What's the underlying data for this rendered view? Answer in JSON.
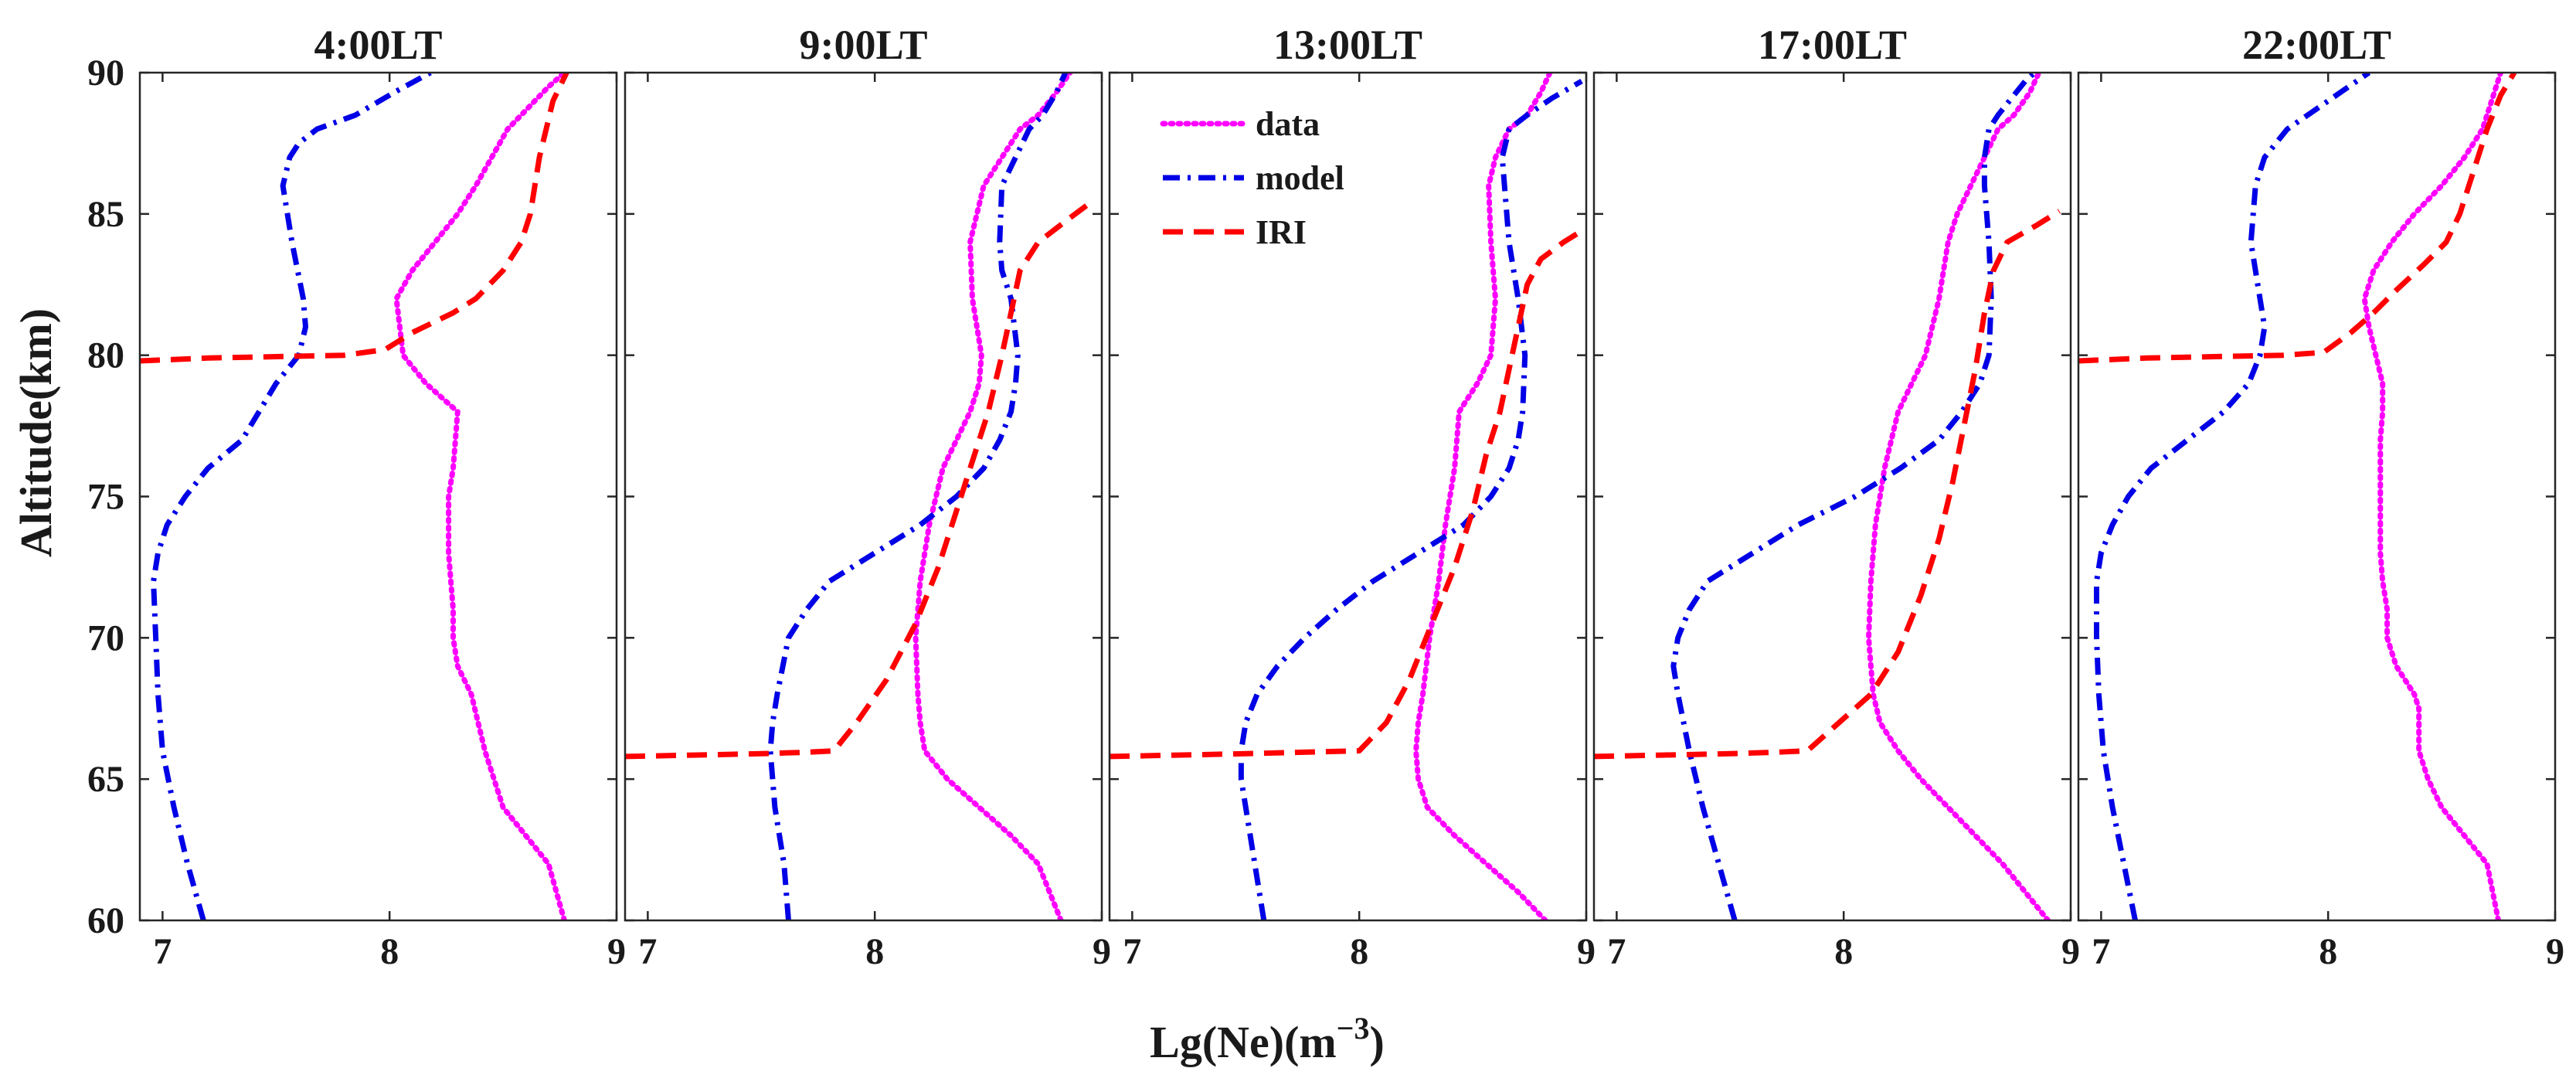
{
  "figure": {
    "xlabel_main": "Lg(Ne)(m",
    "xlabel_sup": "−3",
    "xlabel_close": ")",
    "ylabel": "Altitude(km)"
  },
  "legend": [
    {
      "key": "data",
      "label": "data"
    },
    {
      "key": "model",
      "label": "model"
    },
    {
      "key": "iri",
      "label": "IRI"
    }
  ],
  "colors": {
    "data": "#ff00ff",
    "model": "#0000e6",
    "iri": "#ff0000"
  },
  "chart_data": [
    {
      "type": "line",
      "title": "4:00LT",
      "xlabel": "Lg(Ne)(m^-3)",
      "ylabel": "Altitude(km)",
      "xlim": [
        6.9,
        9
      ],
      "ylim": [
        60,
        90
      ],
      "xticks": [
        7,
        8,
        9
      ],
      "yticks": [
        60,
        65,
        70,
        75,
        80,
        85,
        90
      ],
      "series": [
        {
          "name": "data",
          "x": [
            8.77,
            8.7,
            8.6,
            8.5,
            8.42,
            8.36,
            8.3,
            8.28,
            8.28,
            8.27,
            8.26,
            8.26,
            8.28,
            8.3,
            8.16,
            8.06,
            8.03,
            8.1,
            8.2,
            8.3,
            8.38,
            8.45,
            8.52,
            8.58,
            8.64,
            8.7,
            8.77
          ],
          "y": [
            60,
            62,
            63,
            64,
            66,
            68,
            69,
            70,
            71,
            72,
            73,
            75,
            76,
            78,
            79,
            80,
            82,
            83,
            84,
            85,
            86,
            87,
            88,
            88.5,
            89,
            89.5,
            90
          ]
        },
        {
          "name": "model",
          "x": [
            7.18,
            7.11,
            7.05,
            7.0,
            6.98,
            6.97,
            6.96,
            6.98,
            7.02,
            7.1,
            7.2,
            7.35,
            7.5,
            7.6,
            7.63,
            7.62,
            7.57,
            7.53,
            7.56,
            7.6,
            7.68,
            7.85,
            8.02,
            8.18
          ],
          "y": [
            60,
            62,
            64,
            66,
            68,
            70,
            72,
            73,
            74,
            75,
            76,
            77,
            79,
            80,
            81,
            82,
            84,
            86,
            87,
            87.5,
            88,
            88.5,
            89.3,
            90
          ]
        },
        {
          "name": "IRI",
          "x": [
            6.9,
            7.2,
            7.5,
            7.8,
            7.98,
            8.1,
            8.28,
            8.38,
            8.5,
            8.58,
            8.62,
            8.66,
            8.72,
            8.78
          ],
          "y": [
            79.8,
            79.9,
            79.95,
            80.0,
            80.2,
            80.8,
            81.5,
            82,
            83,
            84,
            85,
            87,
            89,
            90
          ]
        }
      ]
    },
    {
      "type": "line",
      "title": "9:00LT",
      "xlabel": "Lg(Ne)(m^-3)",
      "ylabel": "Altitude(km)",
      "xlim": [
        6.9,
        9
      ],
      "ylim": [
        60,
        90
      ],
      "xticks": [
        7,
        8,
        9
      ],
      "yticks": [
        60,
        65,
        70,
        75,
        80,
        85,
        90
      ],
      "series": [
        {
          "name": "data",
          "x": [
            8.82,
            8.72,
            8.6,
            8.46,
            8.32,
            8.22,
            8.2,
            8.19,
            8.18,
            8.2,
            8.24,
            8.3,
            8.36,
            8.42,
            8.46,
            8.47,
            8.43,
            8.42,
            8.48,
            8.56,
            8.64,
            8.72,
            8.8,
            8.86
          ],
          "y": [
            60,
            62,
            63,
            64,
            65,
            66,
            67,
            68,
            70,
            72,
            74,
            76,
            77,
            78,
            79,
            80,
            82,
            84,
            86,
            87,
            88,
            88.5,
            89.3,
            90
          ]
        },
        {
          "name": "model",
          "x": [
            7.62,
            7.6,
            7.56,
            7.54,
            7.55,
            7.57,
            7.62,
            7.7,
            7.8,
            8.0,
            8.2,
            8.36,
            8.48,
            8.55,
            8.6,
            8.62,
            8.63,
            8.6,
            8.56,
            8.55,
            8.56,
            8.62,
            8.68,
            8.74,
            8.8,
            8.84
          ],
          "y": [
            60,
            62,
            64,
            66,
            67,
            68,
            70,
            71,
            72,
            73,
            74,
            75,
            76,
            77,
            78,
            79,
            80,
            82,
            83,
            84,
            86,
            87,
            88,
            88.5,
            89.3,
            90
          ]
        },
        {
          "name": "IRI",
          "x": [
            6.9,
            7.2,
            7.5,
            7.7,
            7.82,
            7.92,
            8.05,
            8.18,
            8.28,
            8.36,
            8.44,
            8.5,
            8.56,
            8.6,
            8.64,
            8.72,
            8.85,
            8.95
          ],
          "y": [
            65.8,
            65.85,
            65.9,
            65.95,
            66,
            67,
            68.5,
            70.5,
            72.5,
            74.5,
            76.5,
            78,
            80,
            81.5,
            83,
            84,
            84.8,
            85.4
          ]
        }
      ]
    },
    {
      "type": "line",
      "title": "13:00LT",
      "xlabel": "Lg(Ne)(m^-3)",
      "ylabel": "Altitude(km)",
      "xlim": [
        6.9,
        9
      ],
      "ylim": [
        60,
        90
      ],
      "xticks": [
        7,
        8,
        9
      ],
      "yticks": [
        60,
        65,
        70,
        75,
        80,
        85,
        90
      ],
      "series": [
        {
          "name": "data",
          "x": [
            8.82,
            8.7,
            8.56,
            8.42,
            8.3,
            8.26,
            8.25,
            8.26,
            8.28,
            8.31,
            8.35,
            8.38,
            8.42,
            8.44,
            8.52,
            8.58,
            8.6,
            8.58,
            8.57,
            8.6,
            8.66,
            8.74,
            8.8,
            8.84
          ],
          "y": [
            60,
            61,
            62,
            63,
            64,
            65,
            66,
            67,
            68,
            70,
            72,
            74,
            76,
            78,
            79,
            80,
            82,
            84,
            86,
            87,
            88,
            88.5,
            89.3,
            90
          ]
        },
        {
          "name": "model",
          "x": [
            7.58,
            7.54,
            7.5,
            7.48,
            7.48,
            7.5,
            7.55,
            7.64,
            7.76,
            7.9,
            8.06,
            8.26,
            8.46,
            8.58,
            8.66,
            8.7,
            8.72,
            8.73,
            8.7,
            8.66,
            8.64,
            8.63,
            8.66,
            8.74,
            8.85,
            8.98
          ],
          "y": [
            60,
            62,
            64,
            65,
            66,
            67,
            68,
            69,
            70,
            71,
            72,
            73,
            74,
            75,
            76,
            77,
            78,
            80,
            82,
            84,
            86,
            87,
            88,
            88.5,
            89.1,
            89.7
          ]
        },
        {
          "name": "IRI",
          "x": [
            6.9,
            7.2,
            7.5,
            7.75,
            8.0,
            8.12,
            8.22,
            8.32,
            8.42,
            8.5,
            8.56,
            8.62,
            8.66,
            8.7,
            8.74,
            8.8,
            8.9,
            8.98
          ],
          "y": [
            65.8,
            65.85,
            65.9,
            65.95,
            66,
            67,
            68.5,
            70.5,
            72.5,
            74.5,
            76.5,
            78,
            79.5,
            81,
            82.5,
            83.4,
            84,
            84.4
          ]
        }
      ]
    },
    {
      "type": "line",
      "title": "17:00LT",
      "xlabel": "Lg(Ne)(m^-3)",
      "ylabel": "Altitude(km)",
      "xlim": [
        6.9,
        9
      ],
      "ylim": [
        60,
        90
      ],
      "xticks": [
        7,
        8,
        9
      ],
      "yticks": [
        60,
        65,
        70,
        75,
        80,
        85,
        90
      ],
      "series": [
        {
          "name": "data",
          "x": [
            8.9,
            8.8,
            8.7,
            8.58,
            8.46,
            8.34,
            8.24,
            8.16,
            8.13,
            8.12,
            8.11,
            8.12,
            8.14,
            8.18,
            8.24,
            8.3,
            8.36,
            8.42,
            8.46,
            8.5,
            8.56,
            8.62,
            8.68,
            8.75,
            8.82,
            8.86
          ],
          "y": [
            60,
            61,
            62,
            63,
            64,
            65,
            66,
            67,
            68,
            69,
            70,
            72,
            74,
            76,
            78,
            79,
            80,
            82,
            84,
            85,
            86,
            87,
            88,
            88.5,
            89.3,
            90
          ]
        },
        {
          "name": "model",
          "x": [
            7.52,
            7.45,
            7.38,
            7.32,
            7.27,
            7.25,
            7.27,
            7.32,
            7.4,
            7.6,
            7.8,
            8.05,
            8.25,
            8.42,
            8.52,
            8.6,
            8.64,
            8.65,
            8.64,
            8.62,
            8.62,
            8.64,
            8.68,
            8.74,
            8.8,
            8.84
          ],
          "y": [
            60,
            62,
            64,
            66,
            68,
            69,
            70,
            71,
            72,
            73,
            74,
            75,
            76,
            77,
            78,
            79,
            80,
            82,
            84,
            86,
            87,
            88,
            88.5,
            89.1,
            89.7,
            90
          ]
        },
        {
          "name": "IRI",
          "x": [
            6.9,
            7.2,
            7.5,
            7.7,
            7.84,
            7.98,
            8.12,
            8.24,
            8.34,
            8.42,
            8.48,
            8.53,
            8.58,
            8.62,
            8.66,
            8.72,
            8.85,
            8.95
          ],
          "y": [
            65.8,
            65.85,
            65.9,
            65.95,
            66,
            67,
            68,
            69.5,
            71.5,
            73.5,
            75.5,
            77.5,
            79.5,
            81.5,
            83,
            84,
            84.6,
            85.1
          ]
        }
      ]
    },
    {
      "type": "line",
      "title": "22:00LT",
      "xlabel": "Lg(Ne)(m^-3)",
      "ylabel": "Altitude(km)",
      "xlim": [
        6.9,
        9
      ],
      "ylim": [
        60,
        90
      ],
      "xticks": [
        7,
        8,
        9
      ],
      "yticks": [
        60,
        65,
        70,
        75,
        80,
        85,
        90
      ],
      "series": [
        {
          "name": "data",
          "x": [
            8.75,
            8.7,
            8.6,
            8.5,
            8.44,
            8.4,
            8.4,
            8.38,
            8.3,
            8.26,
            8.26,
            8.24,
            8.23,
            8.23,
            8.23,
            8.24,
            8.24,
            8.18,
            8.16,
            8.2,
            8.28,
            8.38,
            8.5,
            8.6,
            8.68,
            8.76
          ],
          "y": [
            60,
            62,
            63,
            64,
            65,
            66,
            67.5,
            68,
            69,
            70,
            71,
            72,
            73,
            75,
            77,
            78,
            79,
            81,
            82,
            83,
            84,
            85,
            86,
            87,
            88,
            90
          ]
        },
        {
          "name": "model",
          "x": [
            7.15,
            7.1,
            7.05,
            7.01,
            6.99,
            6.98,
            6.98,
            7.0,
            7.05,
            7.12,
            7.22,
            7.38,
            7.54,
            7.65,
            7.7,
            7.72,
            7.7,
            7.66,
            7.68,
            7.72,
            7.82,
            8.0,
            8.18
          ],
          "y": [
            60,
            62,
            64,
            66,
            68,
            70,
            72,
            73,
            74,
            75,
            76,
            77,
            78,
            79,
            80,
            81,
            82,
            84,
            86,
            87,
            88,
            89,
            90
          ]
        },
        {
          "name": "IRI",
          "x": [
            6.9,
            7.2,
            7.5,
            7.8,
            7.98,
            8.1,
            8.2,
            8.3,
            8.42,
            8.52,
            8.58,
            8.64,
            8.7,
            8.76,
            8.82
          ],
          "y": [
            79.8,
            79.9,
            79.95,
            80.0,
            80.1,
            80.8,
            81.5,
            82.3,
            83.2,
            84,
            85,
            86.5,
            88,
            89.2,
            90
          ]
        }
      ]
    }
  ]
}
